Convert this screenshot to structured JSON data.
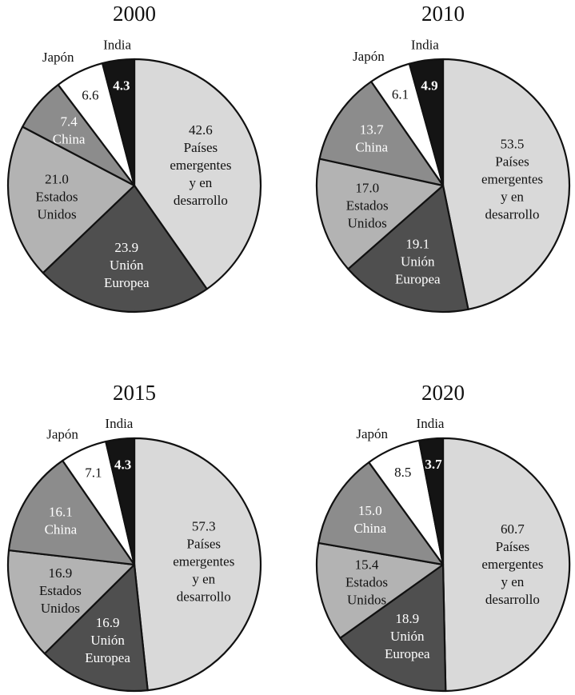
{
  "colors": {
    "emergentes": "#d9d9d9",
    "ue": "#4f4f4f",
    "eeuu": "#b3b3b3",
    "china": "#8c8c8c",
    "japon": "#ffffff",
    "india": "#141414",
    "stroke": "#111111"
  },
  "chart_data": [
    {
      "type": "pie",
      "title": "2000",
      "slices": [
        {
          "key": "emergentes",
          "value": 42.6,
          "label": "42.6",
          "name_lines": [
            "Países",
            "emergentes",
            "y en",
            "desarrollo"
          ]
        },
        {
          "key": "ue",
          "value": 23.9,
          "label": "23.9",
          "name_lines": [
            "Unión",
            "Europea"
          ]
        },
        {
          "key": "eeuu",
          "value": 21.0,
          "label": "21.0",
          "name_lines": [
            "Estados",
            "Unidos"
          ]
        },
        {
          "key": "china",
          "value": 7.4,
          "label": "7.4",
          "name_lines": [
            "China"
          ]
        },
        {
          "key": "japon",
          "value": 6.6,
          "label": "6.6",
          "name_lines": [
            "Japón"
          ]
        },
        {
          "key": "india",
          "value": 4.3,
          "label": "4.3",
          "name_lines": [
            "India"
          ]
        }
      ]
    },
    {
      "type": "pie",
      "title": "2010",
      "slices": [
        {
          "key": "emergentes",
          "value": 53.5,
          "label": "53.5",
          "name_lines": [
            "Países",
            "emergentes",
            "y en",
            "desarrollo"
          ]
        },
        {
          "key": "ue",
          "value": 19.1,
          "label": "19.1",
          "name_lines": [
            "Unión",
            "Europea"
          ]
        },
        {
          "key": "eeuu",
          "value": 17.0,
          "label": "17.0",
          "name_lines": [
            "Estados",
            "Unidos"
          ]
        },
        {
          "key": "china",
          "value": 13.7,
          "label": "13.7",
          "name_lines": [
            "China"
          ]
        },
        {
          "key": "japon",
          "value": 6.1,
          "label": "6.1",
          "name_lines": [
            "Japón"
          ]
        },
        {
          "key": "india",
          "value": 4.9,
          "label": "4.9",
          "name_lines": [
            "India"
          ]
        }
      ]
    },
    {
      "type": "pie",
      "title": "2015",
      "slices": [
        {
          "key": "emergentes",
          "value": 57.3,
          "label": "57.3",
          "name_lines": [
            "Países",
            "emergentes",
            "y en",
            "desarrollo"
          ]
        },
        {
          "key": "ue",
          "value": 16.9,
          "label": "16.9",
          "name_lines": [
            "Unión",
            "Europea"
          ]
        },
        {
          "key": "eeuu",
          "value": 16.9,
          "label": "16.9",
          "name_lines": [
            "Estados",
            "Unidos"
          ]
        },
        {
          "key": "china",
          "value": 16.1,
          "label": "16.1",
          "name_lines": [
            "China"
          ]
        },
        {
          "key": "japon",
          "value": 7.1,
          "label": "7.1",
          "name_lines": [
            "Japón"
          ]
        },
        {
          "key": "india",
          "value": 4.3,
          "label": "4.3",
          "name_lines": [
            "India"
          ]
        }
      ]
    },
    {
      "type": "pie",
      "title": "2020",
      "slices": [
        {
          "key": "emergentes",
          "value": 60.7,
          "label": "60.7",
          "name_lines": [
            "Países",
            "emergentes",
            "y en",
            "desarrollo"
          ]
        },
        {
          "key": "ue",
          "value": 18.9,
          "label": "18.9",
          "name_lines": [
            "Unión",
            "Europea"
          ]
        },
        {
          "key": "eeuu",
          "value": 15.4,
          "label": "15.4",
          "name_lines": [
            "Estados",
            "Unidos"
          ]
        },
        {
          "key": "china",
          "value": 15.0,
          "label": "15.0",
          "name_lines": [
            "China"
          ]
        },
        {
          "key": "japon",
          "value": 8.5,
          "label": "8.5",
          "name_lines": [
            "Japón"
          ]
        },
        {
          "key": "india",
          "value": 3.7,
          "label": "3.7",
          "name_lines": [
            "India"
          ]
        }
      ]
    }
  ]
}
